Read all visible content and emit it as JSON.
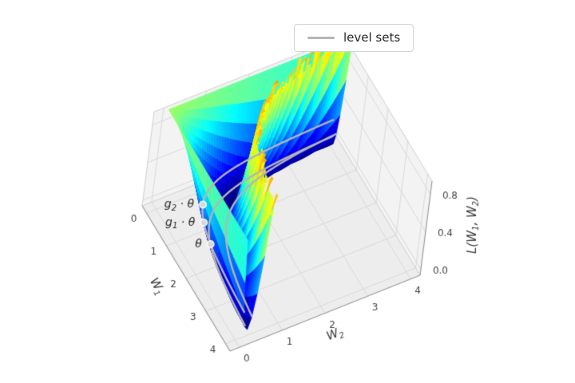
{
  "figure": {
    "background": "#ffffff"
  },
  "legend": {
    "label": "level sets",
    "line_color": "#b5b5b5"
  },
  "chart_data": {
    "type": "surface",
    "title": "",
    "function": "L(W1, W2) = (1 - W1*W2)^2, drawn over [0,4]x[0,4], masked/capped above ~1.35",
    "colormap": "jet",
    "color_vmax": 1.9,
    "surface_mask_max": 1.35,
    "grid_n": 60,
    "x_range": [
      0,
      4
    ],
    "y_range": [
      0,
      4
    ],
    "z_range": [
      0,
      0.9
    ],
    "x_ticks": [
      "0",
      "1",
      "2",
      "3",
      "4"
    ],
    "y_ticks": [
      "0",
      "1",
      "2",
      "3",
      "4"
    ],
    "z_ticks": [
      "0.0",
      "0.4",
      "0.8"
    ],
    "xlabel_parts": [
      {
        "t": "W"
      },
      {
        "t": "1",
        "sub": true
      }
    ],
    "ylabel_parts": [
      {
        "t": "W"
      },
      {
        "t": "2",
        "sub": true
      }
    ],
    "zlabel_parts": [
      {
        "t": "L"
      },
      {
        "t": "("
      },
      {
        "t": "W"
      },
      {
        "t": "1",
        "sub": true
      },
      {
        "t": ", "
      },
      {
        "t": "W"
      },
      {
        "t": "2",
        "sub": true
      },
      {
        "t": ")"
      }
    ],
    "level_set_color": "#b5b5b5",
    "level_set_products": [
      0.55,
      0.78,
      1.35
    ],
    "orbit": {
      "product": 0.55,
      "marker_w1": [
        2.0,
        1.4,
        0.95
      ],
      "labels": [
        [
          {
            "t": "θ"
          }
        ],
        [
          {
            "t": "g"
          },
          {
            "t": "1",
            "sub": true
          },
          {
            "t": " · θ"
          }
        ],
        [
          {
            "t": "g"
          },
          {
            "t": "2",
            "sub": true
          },
          {
            "t": " · θ"
          }
        ]
      ]
    }
  }
}
